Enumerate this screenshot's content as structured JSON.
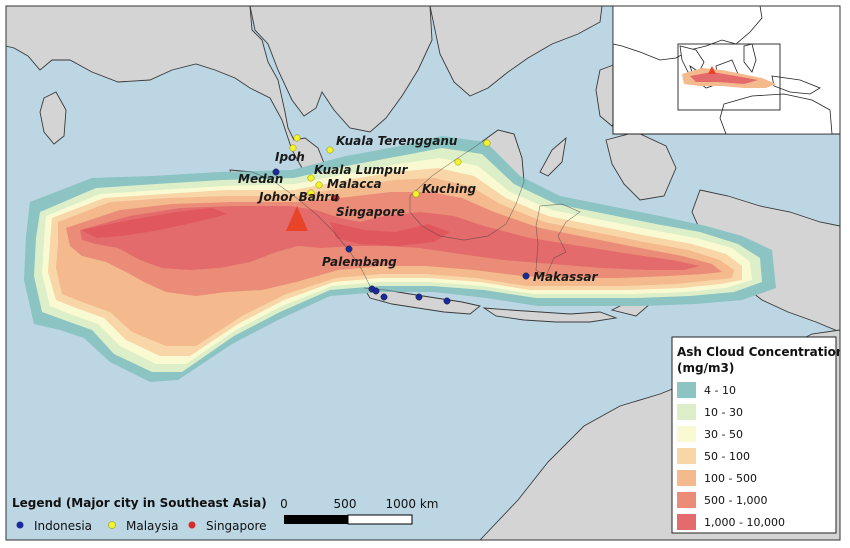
{
  "city_legend": {
    "title": "Legend (Major city in Southeast Asia)",
    "items": [
      {
        "label": "Indonesia",
        "color": "#1b2a9a"
      },
      {
        "label": "Malaysia",
        "color": "#f4f42a"
      },
      {
        "label": "Singapore",
        "color": "#d42a2a"
      }
    ]
  },
  "concentration_legend": {
    "title_line1": "Ash Cloud Concentration",
    "title_line2": "(mg/m3)",
    "classes": [
      {
        "label": "4 - 10",
        "color": "#8cc3c3"
      },
      {
        "label": "10 - 30",
        "color": "#dcefc8"
      },
      {
        "label": "30 - 50",
        "color": "#fafad2"
      },
      {
        "label": "50 - 100",
        "color": "#f8d6a8"
      },
      {
        "label": "100 - 500",
        "color": "#f4b98c"
      },
      {
        "label": "500 - 1,000",
        "color": "#ea8c78"
      },
      {
        "label": "1,000 - 10,000",
        "color": "#e36b6b"
      }
    ]
  },
  "scale_bar": {
    "labels": [
      "0",
      "500",
      "1000 km"
    ]
  },
  "cities": [
    {
      "name": "Medan",
      "country": "Indonesia",
      "labeled": true
    },
    {
      "name": "Ipoh",
      "country": "Malaysia",
      "labeled": true
    },
    {
      "name": "Kuala Terengganu",
      "country": "Malaysia",
      "labeled": true
    },
    {
      "name": "Kuala Lumpur",
      "country": "Malaysia",
      "labeled": true
    },
    {
      "name": "Malacca",
      "country": "Malaysia",
      "labeled": true
    },
    {
      "name": "Johor Bahru",
      "country": "Malaysia",
      "labeled": true
    },
    {
      "name": "Singapore",
      "country": "Singapore",
      "labeled": true
    },
    {
      "name": "Kuching",
      "country": "Malaysia",
      "labeled": true
    },
    {
      "name": "Palembang",
      "country": "Indonesia",
      "labeled": true
    },
    {
      "name": "Makassar",
      "country": "Indonesia",
      "labeled": true
    },
    {
      "name": "",
      "country": "Malaysia",
      "labeled": false
    },
    {
      "name": "",
      "country": "Malaysia",
      "labeled": false
    },
    {
      "name": "",
      "country": "Malaysia",
      "labeled": false
    },
    {
      "name": "",
      "country": "Indonesia",
      "labeled": false
    },
    {
      "name": "",
      "country": "Indonesia",
      "labeled": false
    },
    {
      "name": "",
      "country": "Indonesia",
      "labeled": false
    },
    {
      "name": "",
      "country": "Indonesia",
      "labeled": false
    },
    {
      "name": "",
      "country": "Indonesia",
      "labeled": false
    }
  ],
  "volcano_marker": {
    "shape": "triangle",
    "color": "#e8442a"
  },
  "colors": {
    "sea": "#bcd6e4",
    "land": "#d4d4d4",
    "coastline": "#3a3a3a",
    "ash_gradient_low": "#8cc3c3",
    "ash_gradient_high": "#e36b6b"
  }
}
